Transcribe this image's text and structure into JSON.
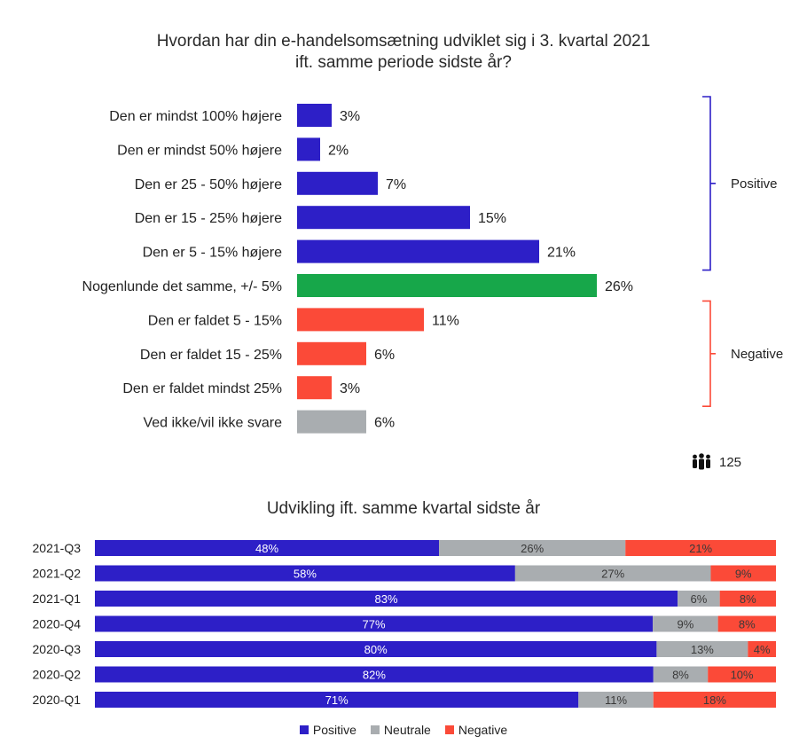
{
  "colors": {
    "positive": "#2d1fc7",
    "neutral_answer": "#17a74a",
    "negative": "#fb4a38",
    "no_answer": "#a9adb0",
    "neutral_stack": "#a9adb0"
  },
  "respondents": {
    "icon": "people-group-icon",
    "count": "125"
  },
  "chart_data": [
    {
      "type": "bar",
      "orientation": "horizontal",
      "title": "Hvordan har din e-handelsomsætning udviklet sig i 3. kvartal 2021",
      "subtitle": "ift. samme periode sidste år?",
      "categories": [
        "Den er mindst 100% højere",
        "Den er mindst 50% højere",
        "Den er 25 - 50% højere",
        "Den er 15 - 25% højere",
        "Den er 5 - 15% højere",
        "Nogenlunde det samme, +/- 5%",
        "Den er faldet 5 - 15%",
        "Den er faldet 15 - 25%",
        "Den er faldet mindst 25%",
        "Ved ikke/vil ikke svare"
      ],
      "values": [
        3,
        2,
        7,
        15,
        21,
        26,
        11,
        6,
        3,
        6
      ],
      "value_labels": [
        "3%",
        "2%",
        "7%",
        "15%",
        "21%",
        "26%",
        "11%",
        "6%",
        "3%",
        "6%"
      ],
      "bar_groups": [
        "positive",
        "positive",
        "positive",
        "positive",
        "positive",
        "neutral_answer",
        "negative",
        "negative",
        "negative",
        "no_answer"
      ],
      "brackets": [
        {
          "label": "Positive",
          "from_index": 0,
          "to_index": 4,
          "color": "#2d1fc7"
        },
        {
          "label": "Negative",
          "from_index": 6,
          "to_index": 8,
          "color": "#fb4a38"
        }
      ],
      "xlim": [
        0,
        30
      ],
      "grid": false
    },
    {
      "type": "bar",
      "orientation": "horizontal",
      "stacked": true,
      "title": "Udvikling ift. samme kvartal sidste år",
      "categories": [
        "2021-Q3",
        "2021-Q2",
        "2021-Q1",
        "2020-Q4",
        "2020-Q3",
        "2020-Q2",
        "2020-Q1"
      ],
      "series": [
        {
          "name": "Positive",
          "color": "#2d1fc7",
          "values": [
            48,
            58,
            83,
            77,
            80,
            82,
            71
          ],
          "labels": [
            "48%",
            "58%",
            "83%",
            "77%",
            "80%",
            "82%",
            "71%"
          ]
        },
        {
          "name": "Neutrale",
          "color": "#a9adb0",
          "values": [
            26,
            27,
            6,
            9,
            13,
            8,
            11
          ],
          "labels": [
            "26%",
            "27%",
            "6%",
            "9%",
            "13%",
            "8%",
            "11%"
          ]
        },
        {
          "name": "Negative",
          "color": "#fb4a38",
          "values": [
            21,
            9,
            8,
            8,
            4,
            10,
            18
          ],
          "labels": [
            "21%",
            "9%",
            "8%",
            "8%",
            "4%",
            "10%",
            "18%"
          ]
        }
      ],
      "legend_position": "bottom",
      "grid": false
    }
  ]
}
